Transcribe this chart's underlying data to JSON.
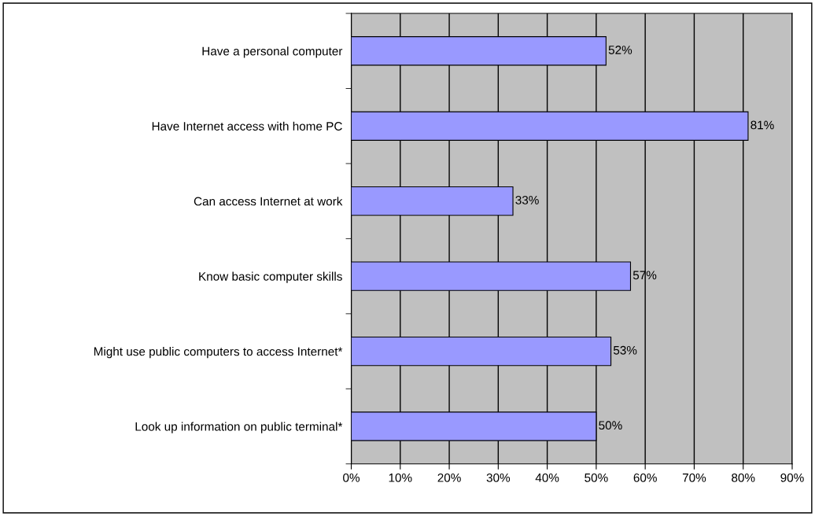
{
  "chart_data": {
    "type": "bar",
    "orientation": "horizontal",
    "categories": [
      "Have a personal computer",
      "Have Internet access with home PC",
      "Can access Internet at work",
      "Know basic computer skills",
      "Might use public computers to access Internet*",
      "Look up information on public terminal*"
    ],
    "values": [
      52,
      81,
      33,
      57,
      53,
      50
    ],
    "value_labels": [
      "52%",
      "81%",
      "33%",
      "57%",
      "53%",
      "50%"
    ],
    "color": "#9999ff",
    "xlim": [
      0,
      90
    ],
    "xticks": [
      {
        "value": 0,
        "label": "0%"
      },
      {
        "value": 10,
        "label": "10%"
      },
      {
        "value": 20,
        "label": "20%"
      },
      {
        "value": 30,
        "label": "30%"
      },
      {
        "value": 40,
        "label": "40%"
      },
      {
        "value": 50,
        "label": "50%"
      },
      {
        "value": 60,
        "label": "60%"
      },
      {
        "value": 70,
        "label": "70%"
      },
      {
        "value": 80,
        "label": "80%"
      },
      {
        "value": 90,
        "label": "90%"
      }
    ],
    "grid": "x",
    "legend": false
  }
}
